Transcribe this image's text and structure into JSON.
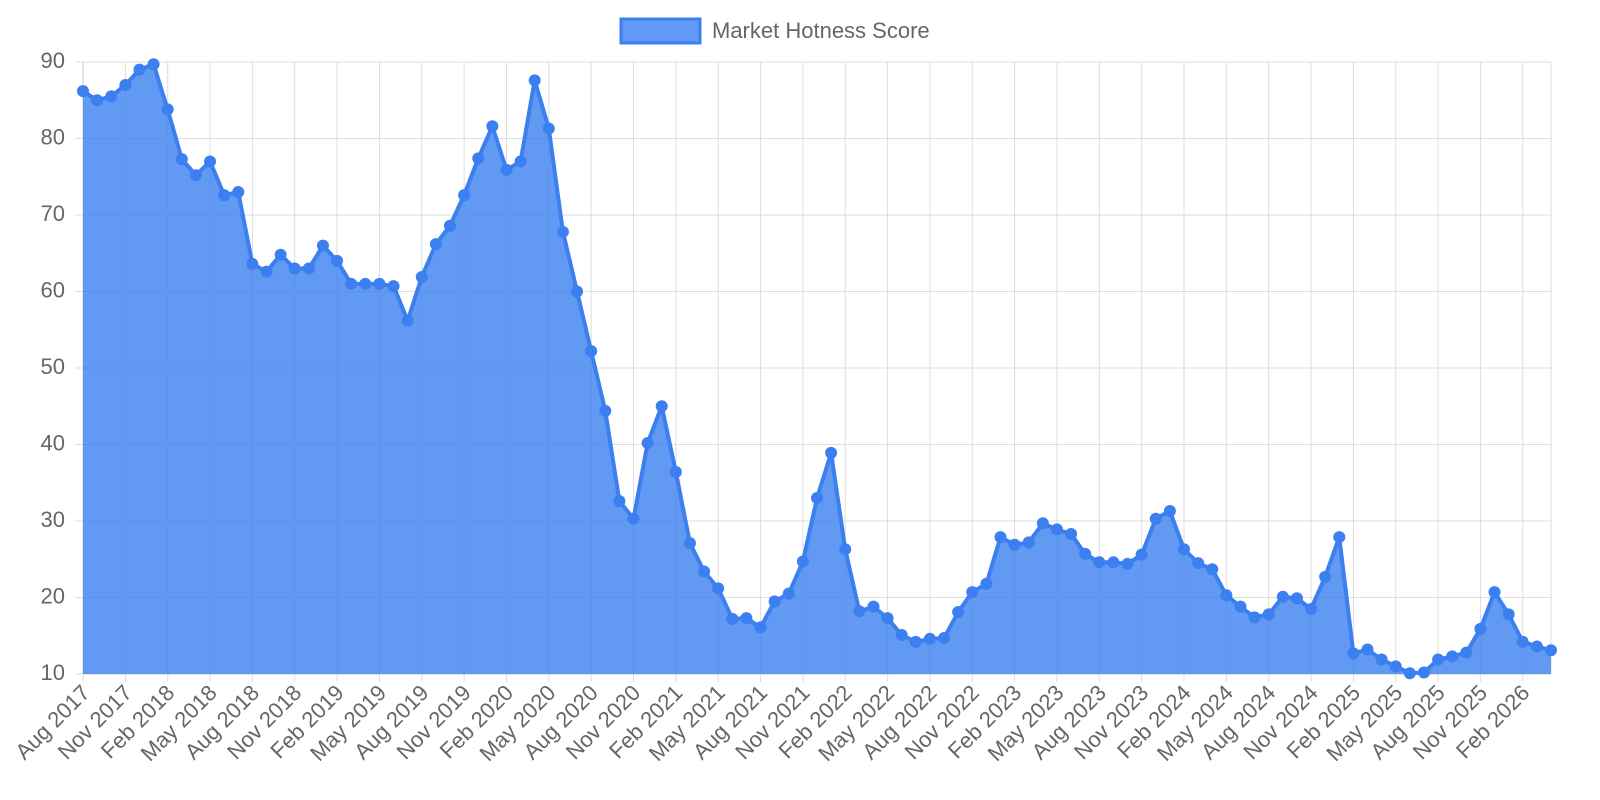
{
  "chart_data": {
    "type": "line",
    "fill": true,
    "grid": true,
    "legend": "top",
    "categories": [
      "Aug 2017",
      null,
      null,
      "Nov 2017",
      null,
      null,
      "Feb 2018",
      null,
      null,
      "May 2018",
      null,
      null,
      "Aug 2018",
      null,
      null,
      "Nov 2018",
      null,
      null,
      "Feb 2019",
      null,
      null,
      "May 2019",
      null,
      null,
      "Aug 2019",
      null,
      null,
      "Nov 2019",
      null,
      null,
      "Feb 2020",
      null,
      null,
      "May 2020",
      null,
      null,
      "Aug 2020",
      null,
      null,
      "Nov 2020",
      null,
      null,
      "Feb 2021",
      null,
      null,
      "May 2021",
      null,
      null,
      "Aug 2021",
      null,
      null,
      "Nov 2021",
      null,
      null,
      "Feb 2022",
      null,
      null,
      "May 2022",
      null,
      null,
      "Aug 2022",
      null,
      null,
      "Nov 2022",
      null,
      null,
      "Feb 2023",
      null,
      null,
      "May 2023",
      null,
      null,
      "Aug 2023",
      null,
      null,
      "Nov 2023",
      null,
      null,
      "Feb 2024",
      null,
      null,
      "May 2024",
      null,
      null,
      "Aug 2024",
      null,
      null,
      "Nov 2024",
      null,
      null,
      "Feb 2025",
      null,
      null,
      "May 2025",
      null,
      null,
      "Aug 2025",
      null,
      null,
      "Nov 2025",
      null,
      null,
      "Feb 2026",
      null,
      null
    ],
    "series": [
      {
        "name": "Market Hotness Score",
        "color": "#3b7ff0",
        "values": [
          86.2,
          85,
          85.5,
          87,
          89,
          89.7,
          83.8,
          77.3,
          75.2,
          77,
          72.6,
          73,
          63.6,
          62.6,
          64.8,
          63,
          63,
          66,
          64,
          61,
          61,
          61,
          60.7,
          56.2,
          61.9,
          66.2,
          68.6,
          72.6,
          77.4,
          81.6,
          75.9,
          77,
          87.6,
          81.3,
          67.8,
          60,
          52.2,
          44.4,
          32.6,
          30.3,
          40.2,
          45,
          36.4,
          27.1,
          23.4,
          21.2,
          17.2,
          17.3,
          16.1,
          19.5,
          20.5,
          24.7,
          33,
          38.9,
          26.3,
          18.2,
          18.8,
          17.3,
          15.1,
          14.2,
          14.6,
          14.7,
          18.1,
          20.7,
          21.8,
          27.9,
          26.9,
          27.2,
          29.7,
          28.9,
          28.3,
          25.7,
          24.6,
          24.6,
          24.4,
          25.6,
          30.3,
          31.3,
          26.3,
          24.5,
          23.7,
          20.3,
          18.8,
          17.4,
          17.8,
          20.1,
          19.9,
          18.5,
          22.7,
          27.9,
          12.7,
          13.2,
          11.9,
          11,
          10.1,
          10.2,
          11.9,
          12.3,
          12.8,
          15.9,
          20.7,
          17.8,
          14.2,
          13.6,
          13.1
        ]
      }
    ],
    "ylim": [
      10,
      90
    ],
    "yticks": [
      10,
      20,
      30,
      40,
      50,
      60,
      70,
      80,
      90
    ]
  }
}
